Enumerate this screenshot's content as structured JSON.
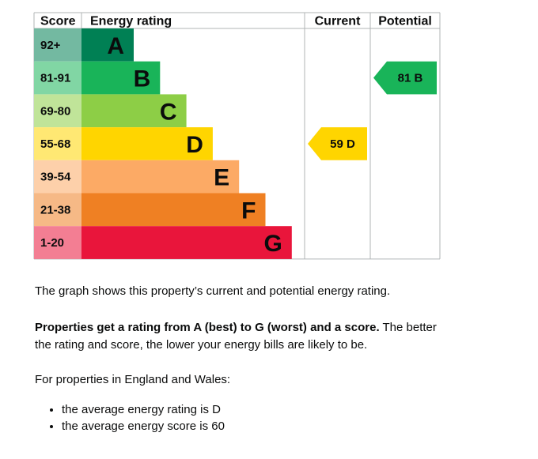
{
  "chart_data": {
    "type": "bar",
    "headers": {
      "score": "Score",
      "rating": "Energy rating",
      "current": "Current",
      "potential": "Potential"
    },
    "bands": [
      {
        "score_range": "92+",
        "letter": "A",
        "min": 92,
        "max": 100,
        "color": "#008054"
      },
      {
        "score_range": "81-91",
        "letter": "B",
        "min": 81,
        "max": 91,
        "color": "#19b459"
      },
      {
        "score_range": "69-80",
        "letter": "C",
        "min": 69,
        "max": 80,
        "color": "#8dce46"
      },
      {
        "score_range": "55-68",
        "letter": "D",
        "min": 55,
        "max": 68,
        "color": "#ffd500"
      },
      {
        "score_range": "39-54",
        "letter": "E",
        "min": 39,
        "max": 54,
        "color": "#fcaa65"
      },
      {
        "score_range": "21-38",
        "letter": "F",
        "min": 21,
        "max": 38,
        "color": "#ef8023"
      },
      {
        "score_range": "1-20",
        "letter": "G",
        "min": 1,
        "max": 20,
        "color": "#e9153b"
      }
    ],
    "current": {
      "value": 59,
      "band": "D",
      "label": "59 D",
      "color": "#ffd500"
    },
    "potential": {
      "value": 81,
      "band": "B",
      "label": "81 B",
      "color": "#19b459"
    }
  },
  "text": {
    "summary": "The graph shows this property’s current and potential energy rating.",
    "explain_bold": "Properties get a rating from A (best) to G (worst) and a score.",
    "explain_rest": " The better the rating and score, the lower your energy bills are likely to be.",
    "region": "For properties in England and Wales:",
    "bullets": [
      "the average energy rating is D",
      "the average energy score is 60"
    ]
  }
}
